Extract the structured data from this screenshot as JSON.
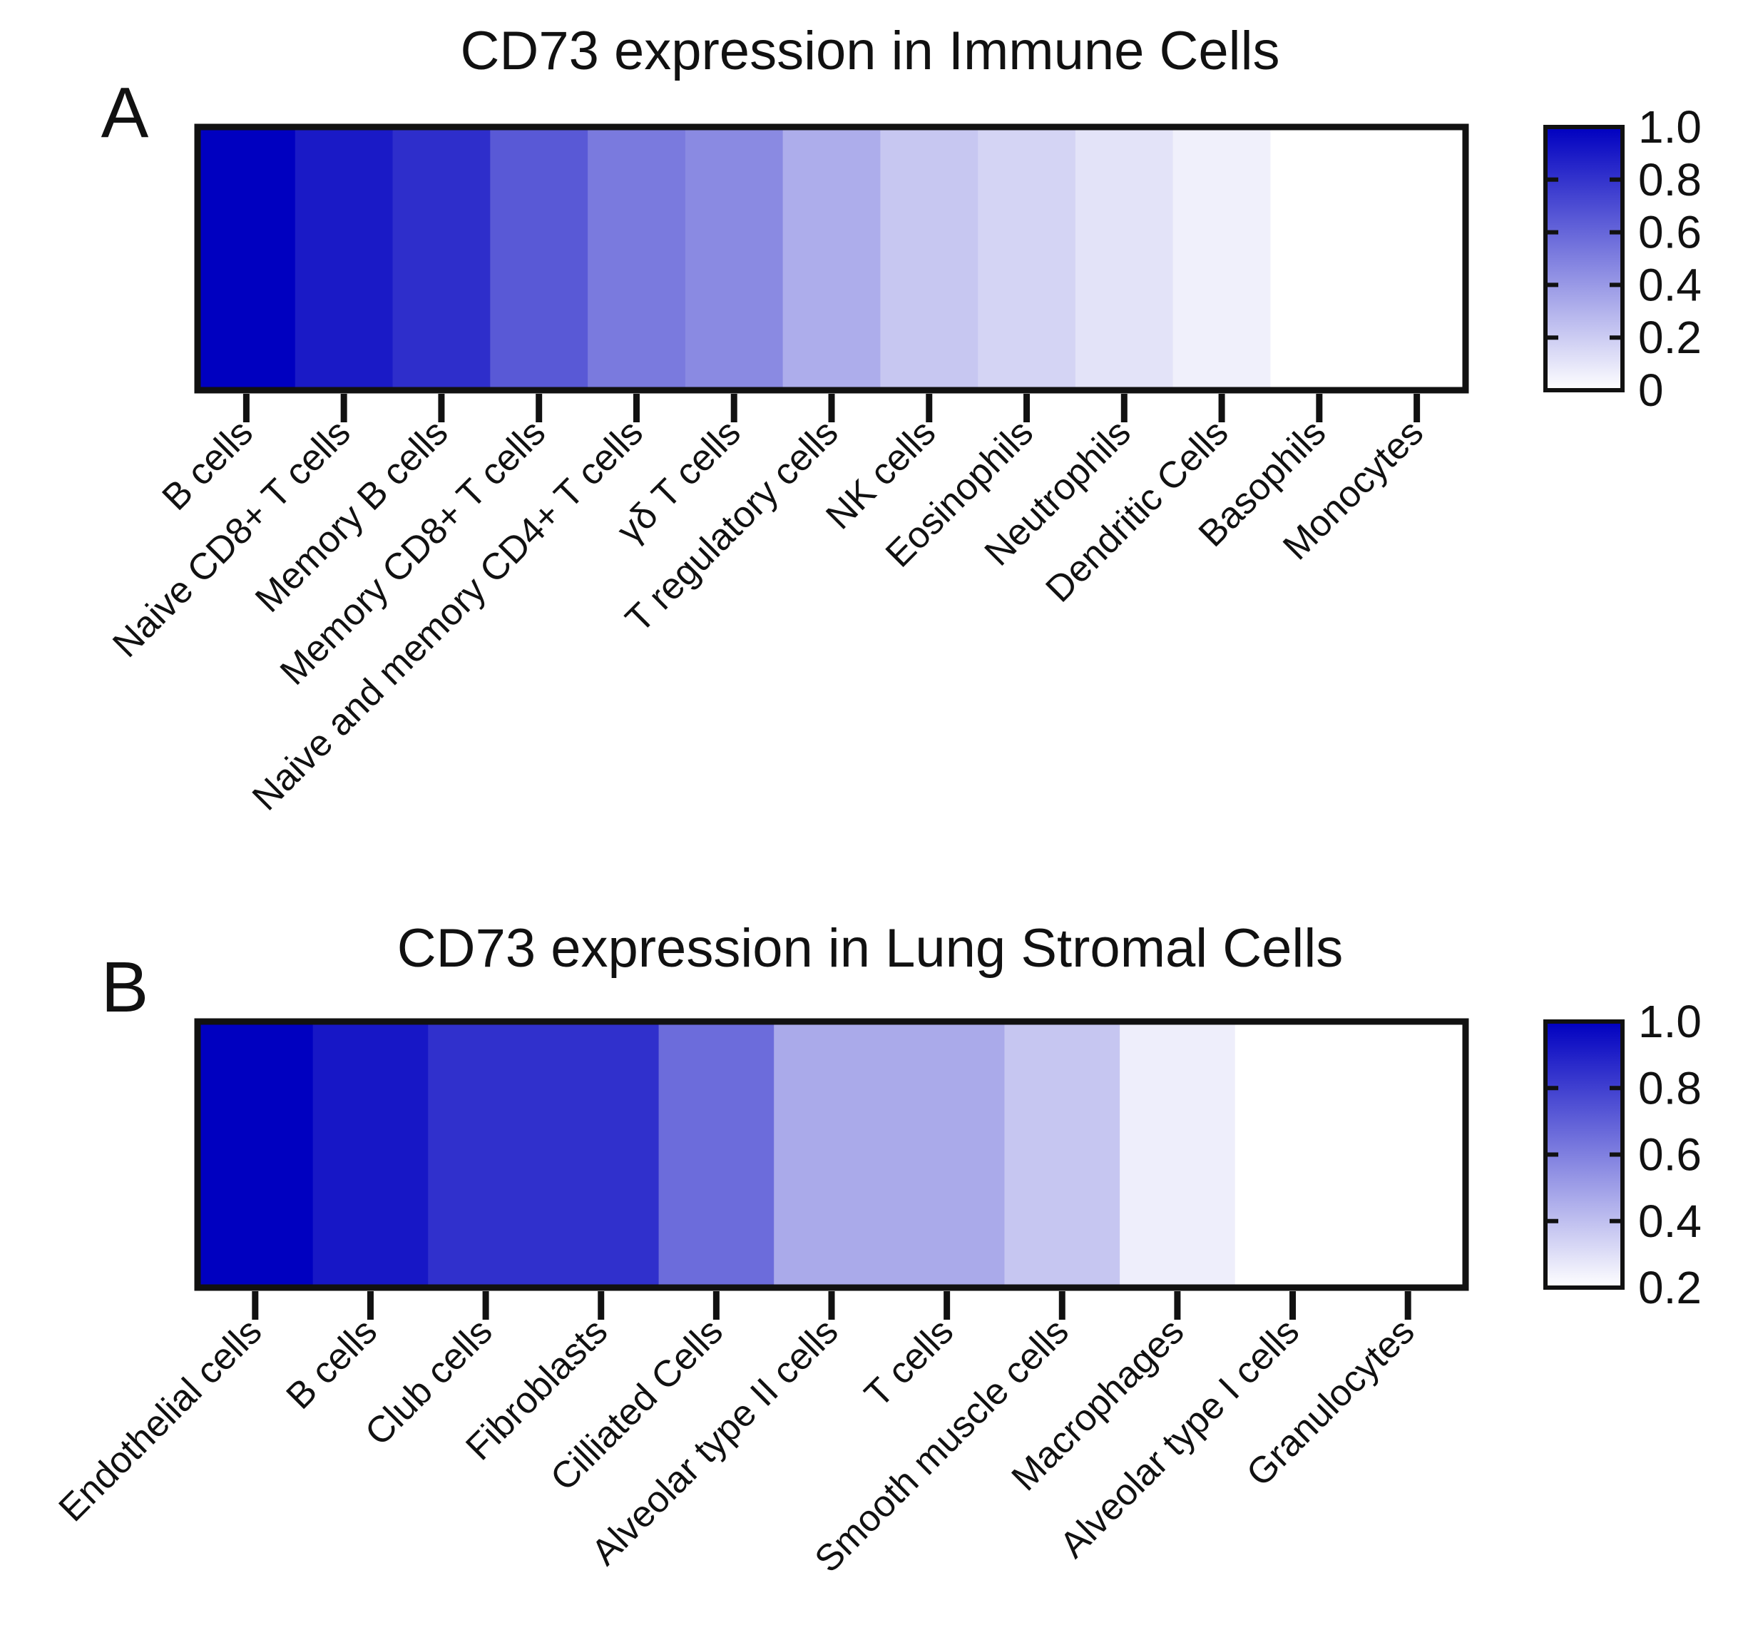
{
  "chart_data": [
    {
      "panel_label": "A",
      "type": "heatmap",
      "title": "CD73 expression in Immune Cells",
      "categories": [
        "B cells",
        "Naive CD8+ T cells",
        "Memory B cells",
        "Memory CD8+ T cells",
        "Naive and memory CD4+ T cells",
        "γδ T cells",
        "T regulatory cells",
        "NK cells",
        "Eosinophils",
        "Neutrophils",
        "Dendritic Cells",
        "Basophils",
        "Monocytes"
      ],
      "values": [
        1.0,
        0.9,
        0.82,
        0.65,
        0.52,
        0.46,
        0.32,
        0.22,
        0.17,
        0.11,
        0.06,
        0.0,
        0.0
      ],
      "colorbar": {
        "min": 0,
        "max": 1.0,
        "ticks": [
          "1.0",
          "0.8",
          "0.6",
          "0.4",
          "0.2",
          "0"
        ]
      },
      "colors": {
        "low": "#ffffff",
        "high": "#0000c0"
      }
    },
    {
      "panel_label": "B",
      "type": "heatmap",
      "title": "CD73 expression in Lung Stromal Cells",
      "categories": [
        "Endothelial cells",
        "B cells",
        "Club cells",
        "Fibroblasts",
        "Cilliated Cells",
        "Alveolar type II cells",
        "T cells",
        "Smooth muscle cells",
        "Macrophages",
        "Alveolar type I cells",
        "Granulocytes"
      ],
      "values": [
        1.0,
        0.92,
        0.83,
        0.83,
        0.62,
        0.4,
        0.4,
        0.3,
        0.16,
        0.1,
        0.1
      ],
      "colorbar": {
        "min": 0.1,
        "max": 1.0,
        "ticks": [
          "1.0",
          "0.8",
          "0.6",
          "0.4",
          "0.2"
        ]
      },
      "colors": {
        "low": "#ffffff",
        "high": "#0000c0"
      }
    }
  ]
}
